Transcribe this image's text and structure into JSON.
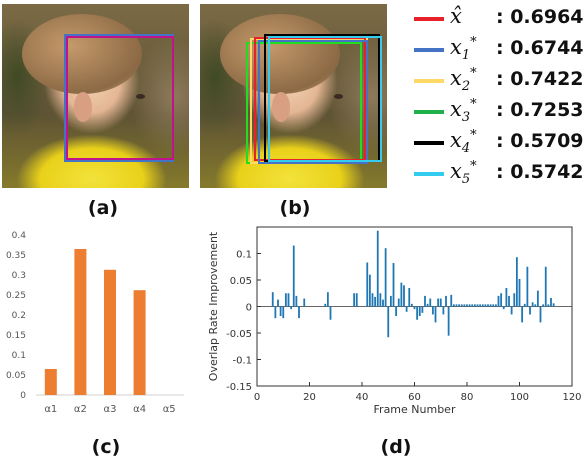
{
  "captions": {
    "a": "(a)",
    "b": "(b)",
    "c": "(c)",
    "d": "(d)"
  },
  "legend": [
    {
      "symbol": "x̂",
      "sub": "",
      "sup": "",
      "value": ": 0.6964",
      "color": "#e8202a"
    },
    {
      "symbol": "x",
      "sub": "1",
      "sup": "*",
      "value": ": 0.6744",
      "color": "#4472c4"
    },
    {
      "symbol": "x",
      "sub": "2",
      "sup": "*",
      "value": ": 0.7422",
      "color": "#ffd966"
    },
    {
      "symbol": "x",
      "sub": "3",
      "sup": "*",
      "value": ": 0.7253",
      "color": "#1fb04a"
    },
    {
      "symbol": "x",
      "sub": "4",
      "sup": "*",
      "value": ": 0.5709",
      "color": "#000000"
    },
    {
      "symbol": "x",
      "sub": "5",
      "sup": "*",
      "value": ": 0.5742",
      "color": "#33ccee"
    }
  ],
  "box_colors": {
    "x_hat": "#e8202a",
    "x1": "#4472c4",
    "x2": "#ffd966",
    "x3": "#22dd22",
    "x4": "#000000",
    "x5": "#33ccee",
    "magenta": "#c0158a"
  },
  "chart_data": [
    {
      "type": "bar",
      "categories": [
        "α1",
        "α2",
        "α3",
        "α4",
        "α5"
      ],
      "values": [
        0.065,
        0.365,
        0.313,
        0.262,
        0
      ],
      "ylim": [
        0,
        0.4
      ],
      "yticks": [
        "0",
        "0.05",
        "0.1",
        "0.15",
        "0.2",
        "0.25",
        "0.3",
        "0.35",
        "0.4"
      ],
      "ytick_values": [
        0,
        0.05,
        0.1,
        0.15,
        0.2,
        0.25,
        0.3,
        0.35,
        0.4
      ],
      "bar_color": "#ed7d31",
      "grid": false,
      "title": "",
      "xlabel": "",
      "ylabel": ""
    },
    {
      "type": "bar",
      "xlabel": "Frame Number",
      "ylabel": "Overlap Rate Improvement",
      "xlim": [
        0,
        120
      ],
      "ylim": [
        -0.15,
        0.15
      ],
      "xticks": [
        "0",
        "20",
        "40",
        "60",
        "80",
        "100",
        "120"
      ],
      "xtick_values": [
        0,
        20,
        40,
        60,
        80,
        100,
        120
      ],
      "yticks": [
        "-0.15",
        "-0.1",
        "-0.05",
        "0",
        "0.05",
        "0.1"
      ],
      "ytick_values": [
        -0.15,
        -0.1,
        -0.05,
        0,
        0.05,
        0.1
      ],
      "bar_color": "#1f77b4",
      "x": [
        6,
        7,
        8,
        9,
        10,
        11,
        12,
        13,
        14,
        15,
        16,
        18,
        26,
        27,
        28,
        37,
        38,
        42,
        43,
        44,
        45,
        46,
        47,
        48,
        49,
        50,
        51,
        52,
        53,
        54,
        55,
        56,
        57,
        58,
        59,
        60,
        61,
        62,
        63,
        64,
        65,
        66,
        67,
        68,
        69,
        70,
        71,
        72,
        73,
        74,
        75,
        76,
        77,
        78,
        79,
        80,
        81,
        82,
        83,
        84,
        85,
        86,
        87,
        88,
        89,
        90,
        91,
        92,
        93,
        94,
        95,
        96,
        97,
        98,
        99,
        100,
        101,
        102,
        103,
        104,
        105,
        106,
        107,
        108,
        109,
        110,
        111,
        112,
        113
      ],
      "values": [
        0.027,
        -0.022,
        0.013,
        -0.018,
        -0.022,
        0.025,
        0.025,
        -0.005,
        0.115,
        0.02,
        -0.022,
        0.015,
        0.005,
        0.027,
        -0.025,
        0.025,
        0.025,
        0.083,
        0.06,
        0.025,
        0.018,
        0.143,
        0.025,
        0.013,
        0.11,
        -0.058,
        0.02,
        0.082,
        -0.018,
        0.015,
        0.045,
        0.04,
        -0.01,
        0.035,
        0.005,
        -0.005,
        -0.025,
        -0.018,
        -0.012,
        0.02,
        0.005,
        0.015,
        -0.015,
        -0.03,
        0.015,
        0.015,
        -0.015,
        0.02,
        -0.055,
        0.022,
        0.004,
        0.004,
        0.004,
        0.004,
        0.004,
        0.004,
        0.004,
        0.004,
        0.004,
        0.004,
        0.004,
        0.004,
        0.004,
        0.004,
        0.004,
        0.004,
        0.004,
        0.02,
        0.025,
        -0.005,
        0.035,
        0.02,
        -0.015,
        0.025,
        0.093,
        0.052,
        -0.03,
        0.005,
        0.075,
        -0.015,
        0.008,
        0.004,
        0.03,
        -0.03,
        0.004,
        0.075,
        0.004,
        0.016,
        0.006
      ],
      "title": "",
      "grid": false
    }
  ]
}
